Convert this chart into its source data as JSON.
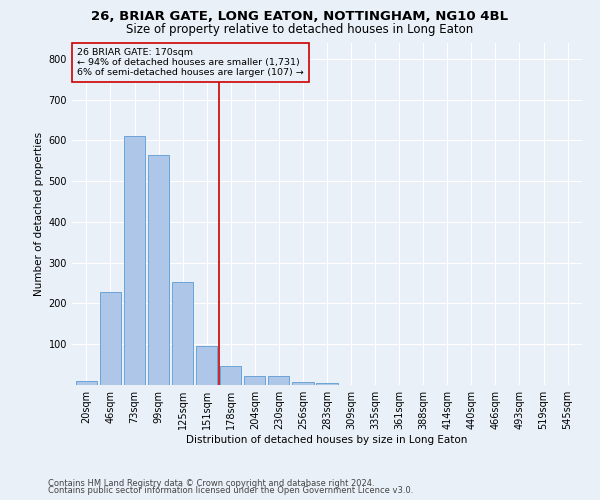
{
  "title": "26, BRIAR GATE, LONG EATON, NOTTINGHAM, NG10 4BL",
  "subtitle": "Size of property relative to detached houses in Long Eaton",
  "xlabel": "Distribution of detached houses by size in Long Eaton",
  "ylabel": "Number of detached properties",
  "footnote1": "Contains HM Land Registry data © Crown copyright and database right 2024.",
  "footnote2": "Contains public sector information licensed under the Open Government Licence v3.0.",
  "bar_labels": [
    "20sqm",
    "46sqm",
    "73sqm",
    "99sqm",
    "125sqm",
    "151sqm",
    "178sqm",
    "204sqm",
    "230sqm",
    "256sqm",
    "283sqm",
    "309sqm",
    "335sqm",
    "361sqm",
    "388sqm",
    "414sqm",
    "440sqm",
    "466sqm",
    "493sqm",
    "519sqm",
    "545sqm"
  ],
  "bar_values": [
    10,
    228,
    610,
    565,
    253,
    96,
    46,
    21,
    21,
    7,
    5,
    0,
    0,
    0,
    0,
    0,
    0,
    0,
    0,
    0,
    0
  ],
  "bar_color": "#aec6e8",
  "bar_edge_color": "#5b9bd5",
  "annotation_lines": [
    "26 BRIAR GATE: 170sqm",
    "← 94% of detached houses are smaller (1,731)",
    "6% of semi-detached houses are larger (107) →"
  ],
  "annotation_box_color": "#cc0000",
  "vline_color": "#cc0000",
  "ylim": [
    0,
    840
  ],
  "yticks": [
    0,
    100,
    200,
    300,
    400,
    500,
    600,
    700,
    800
  ],
  "background_color": "#eaf0f8",
  "grid_color": "#ffffff",
  "title_fontsize": 9.5,
  "subtitle_fontsize": 8.5,
  "axis_label_fontsize": 7.5,
  "tick_fontsize": 7,
  "footnote_fontsize": 6
}
